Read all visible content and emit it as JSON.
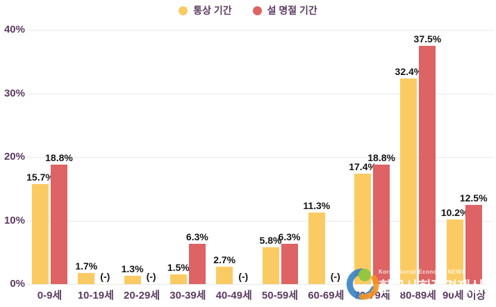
{
  "chart_data": {
    "type": "bar",
    "title": "",
    "categories": [
      "0-9세",
      "10-19세",
      "20-29세",
      "30-39세",
      "40-49세",
      "50-59세",
      "60-69세",
      "70-79세",
      "80-89세",
      "90세 이상"
    ],
    "series": [
      {
        "name": "통상 기간",
        "color": "#FBCB63",
        "values": [
          15.7,
          1.7,
          1.3,
          1.5,
          2.7,
          5.8,
          11.3,
          17.4,
          32.4,
          10.2
        ]
      },
      {
        "name": "설 명절 기간",
        "color": "#DD6364",
        "values": [
          18.8,
          null,
          null,
          6.3,
          null,
          6.3,
          null,
          18.8,
          37.5,
          12.5
        ]
      }
    ],
    "null_label": "(-)",
    "value_suffix": "%",
    "ylim": [
      0,
      40
    ],
    "ytick_step": 10,
    "yticks": [
      "0%",
      "10%",
      "20%",
      "30%",
      "40%"
    ],
    "grid": "horizontal",
    "legend_position": "top-center"
  },
  "watermark": {
    "title": "한국사회적경제신문",
    "subtitle": "Korea Social Economy NEWS"
  },
  "colors": {
    "series_usual": "#FBCB63",
    "series_holiday": "#DD6364",
    "axis_text": "#5C3A62",
    "value_text": "#141414",
    "gridline": "#E9E9E5",
    "background": "#FFFFFF",
    "logo_blue": "#2F7DC1",
    "logo_green": "#8CC63E",
    "logo_orange": "#F7941D"
  }
}
